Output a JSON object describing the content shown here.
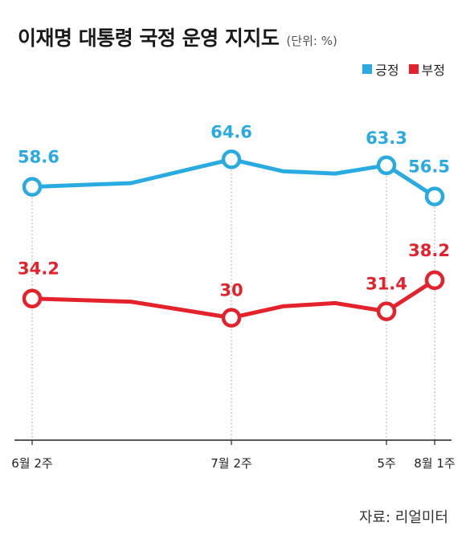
{
  "title": "이재명 대통령 국정 운영 지지도",
  "unit": "(단위: %)",
  "source": "자료: 리얼미터",
  "colors": {
    "positive": "#29abe2",
    "negative": "#e3222c"
  },
  "chart_data": {
    "type": "line",
    "title": "이재명 대통령 국정 운영 지지도",
    "unit": "(단위: %)",
    "x_ticks": [
      "6월 2주",
      "7월 2주",
      "5주",
      "8월 1주"
    ],
    "points": [
      {
        "x": "6월 2주"
      },
      {
        "x": ""
      },
      {
        "x": "7월 2주"
      },
      {
        "x": ""
      },
      {
        "x": ""
      },
      {
        "x": "5주"
      },
      {
        "x": "8월 1주"
      }
    ],
    "series": [
      {
        "name": "긍정",
        "color": "#29abe2",
        "values": [
          58.6,
          59.4,
          64.6,
          62.0,
          61.5,
          63.3,
          56.5
        ],
        "labels": [
          "58.6",
          "",
          "64.6",
          "",
          "",
          "63.3",
          "56.5"
        ]
      },
      {
        "name": "부정",
        "color": "#e3222c",
        "values": [
          34.2,
          33.5,
          30,
          32.5,
          33.2,
          31.4,
          38.2
        ],
        "labels": [
          "34.2",
          "",
          "30",
          "",
          "",
          "31.4",
          "38.2"
        ]
      }
    ],
    "legend_position": "top-right",
    "grid": false
  }
}
